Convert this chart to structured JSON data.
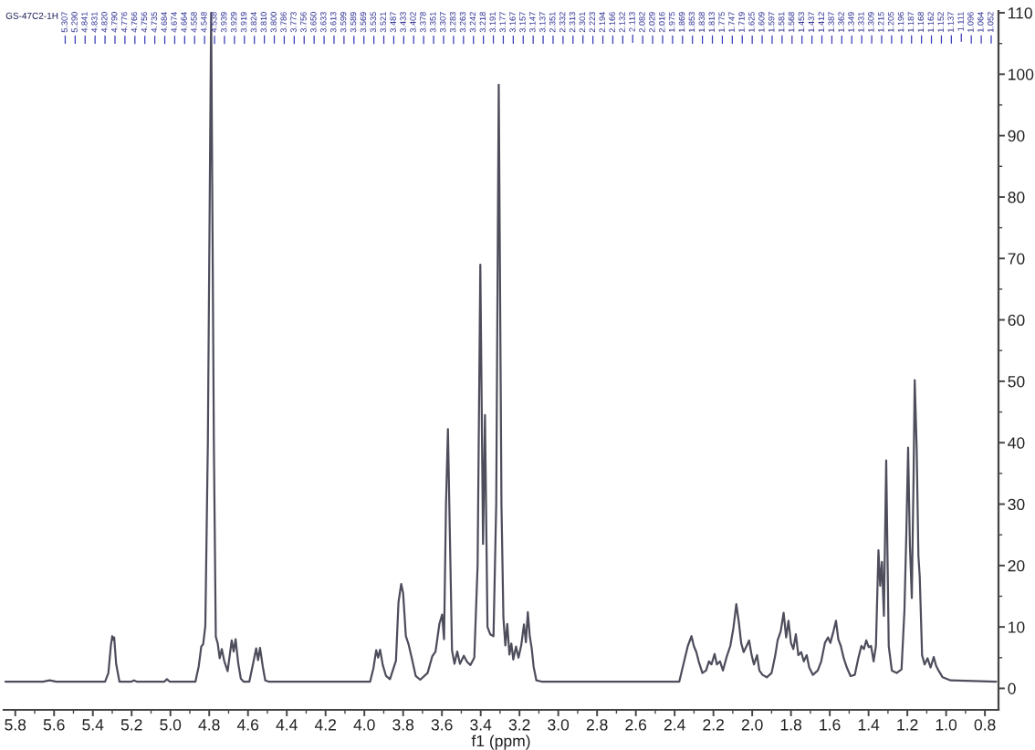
{
  "chart_data": {
    "type": "line",
    "title": "GS-47C2-1H",
    "xlabel": "f1 (ppm)",
    "color": "#4d4d5c",
    "xlim": [
      5.86,
      0.73
    ],
    "ylim": [
      -3.5,
      110.3
    ],
    "xticks": [
      5.8,
      5.6,
      5.4,
      5.2,
      {
        "value": 5,
        "label": "5.0"
      },
      4.8,
      4.6,
      4.4,
      4.2,
      {
        "value": 4,
        "label": "4.0"
      },
      3.8,
      3.6,
      3.4,
      3.2,
      {
        "value": 3,
        "label": "3.0"
      },
      2.8,
      2.6,
      2.4,
      2.2,
      {
        "value": 2,
        "label": "2.0"
      },
      1.8,
      1.6,
      1.4,
      1.2,
      {
        "value": 1,
        "label": "1.0"
      },
      0.8
    ],
    "yticks": [
      0,
      10,
      20,
      30,
      40,
      50,
      60,
      70,
      80,
      90,
      100,
      110
    ],
    "x": [
      5.851,
      5.657,
      5.623,
      5.589,
      5.337,
      5.32,
      5.307,
      5.3,
      5.293,
      5.29,
      5.28,
      5.263,
      5.201,
      5.188,
      5.174,
      5.031,
      5.018,
      5.004,
      4.871,
      4.854,
      4.841,
      4.831,
      4.82,
      4.807,
      4.79,
      4.776,
      4.766,
      4.756,
      4.746,
      4.735,
      4.722,
      4.705,
      4.684,
      4.674,
      4.664,
      4.65,
      4.637,
      4.623,
      4.593,
      4.572,
      4.558,
      4.548,
      4.538,
      4.524,
      4.511,
      4.494,
      3.97,
      3.953,
      3.939,
      3.929,
      3.919,
      3.905,
      3.888,
      3.868,
      3.837,
      3.824,
      3.81,
      3.8,
      3.786,
      3.773,
      3.756,
      3.735,
      3.712,
      3.674,
      3.65,
      3.633,
      3.613,
      3.599,
      3.589,
      3.579,
      3.569,
      3.559,
      3.548,
      3.535,
      3.521,
      3.507,
      3.487,
      3.47,
      3.453,
      3.433,
      3.416,
      3.402,
      3.388,
      3.378,
      3.365,
      3.351,
      3.334,
      3.32,
      3.307,
      3.293,
      3.283,
      3.273,
      3.263,
      3.252,
      3.242,
      3.232,
      3.218,
      3.205,
      3.191,
      3.177,
      3.167,
      3.157,
      3.147,
      3.137,
      3.127,
      3.113,
      3.086,
      2.376,
      2.351,
      2.332,
      2.313,
      2.301,
      2.288,
      2.276,
      2.257,
      2.238,
      2.223,
      2.21,
      2.194,
      2.182,
      2.166,
      2.151,
      2.132,
      2.113,
      2.097,
      2.082,
      2.069,
      2.057,
      2.044,
      2.029,
      2.016,
      2.003,
      1.991,
      1.975,
      1.963,
      1.947,
      1.925,
      1.9,
      1.881,
      1.869,
      1.853,
      1.838,
      1.825,
      1.813,
      1.8,
      1.788,
      1.775,
      1.762,
      1.747,
      1.734,
      1.719,
      1.706,
      1.687,
      1.662,
      1.644,
      1.625,
      1.609,
      1.597,
      1.581,
      1.568,
      1.556,
      1.543,
      1.528,
      1.512,
      1.493,
      1.471,
      1.453,
      1.437,
      1.424,
      1.412,
      1.399,
      1.387,
      1.374,
      1.362,
      1.349,
      1.34,
      1.331,
      1.321,
      1.309,
      1.296,
      1.28,
      1.255,
      1.23,
      1.215,
      1.205,
      1.196,
      1.187,
      1.177,
      1.168,
      1.162,
      1.152,
      1.143,
      1.136,
      1.124,
      1.111,
      1.096,
      1.08,
      1.064,
      1.052,
      1.039,
      1.018,
      0.977,
      0.742
    ],
    "values": [
      1.1,
      1.1,
      1.3,
      1.1,
      1.1,
      2.5,
      7.0,
      8.5,
      7.9,
      8.3,
      4.0,
      1.1,
      1.1,
      1.3,
      1.1,
      1.1,
      1.5,
      1.1,
      1.1,
      3.6,
      6.8,
      7.2,
      10.2,
      40,
      110,
      40,
      8.4,
      7.3,
      4.9,
      6.4,
      4.4,
      2.8,
      7.8,
      6.0,
      8.0,
      4.0,
      1.6,
      1.1,
      1.1,
      4.3,
      6.5,
      4.6,
      6.6,
      3.6,
      1.3,
      1.1,
      1.1,
      3.3,
      6.2,
      5.0,
      6.3,
      3.8,
      2.0,
      1.5,
      4.5,
      14.0,
      17.0,
      15.5,
      8.5,
      7.3,
      5.0,
      2.0,
      1.4,
      2.5,
      5.2,
      6.0,
      10.5,
      12.0,
      8.0,
      30,
      42.2,
      25,
      6.2,
      4.0,
      6.0,
      4.0,
      5.3,
      4.3,
      3.8,
      5.0,
      20,
      69.0,
      23.5,
      44.5,
      10.0,
      8.8,
      8.5,
      30,
      98.3,
      30,
      11.5,
      7.0,
      10.5,
      5.5,
      7.3,
      4.7,
      6.8,
      5.0,
      7.0,
      10.4,
      7.5,
      12.4,
      8.5,
      6.5,
      3.5,
      1.3,
      1.1,
      1.1,
      4.4,
      6.9,
      8.5,
      6.9,
      5.9,
      4.4,
      2.5,
      2.9,
      4.4,
      3.9,
      5.6,
      3.9,
      4.4,
      2.9,
      5.1,
      6.9,
      9.8,
      13.7,
      10.8,
      7.4,
      5.9,
      6.9,
      7.8,
      5.4,
      3.9,
      5.4,
      2.9,
      2.2,
      1.8,
      2.5,
      5.4,
      7.8,
      9.3,
      12.3,
      8.3,
      11.0,
      7.4,
      6.4,
      8.8,
      5.4,
      5.9,
      4.4,
      5.4,
      3.4,
      2.2,
      2.9,
      4.4,
      7.4,
      8.3,
      7.4,
      9.3,
      11.0,
      8.0,
      6.9,
      4.9,
      3.4,
      2.0,
      2.2,
      4.9,
      6.9,
      6.4,
      7.8,
      6.7,
      6.9,
      4.4,
      6.9,
      22.5,
      16.7,
      20.6,
      11.8,
      37.1,
      6.9,
      2.9,
      2.5,
      3.1,
      12.7,
      25.5,
      39.2,
      23.5,
      14.7,
      34.3,
      50.2,
      39.2,
      21.6,
      18.1,
      5.4,
      3.9,
      4.9,
      3.4,
      5.1,
      3.7,
      2.9,
      1.8,
      1.3,
      1.1
    ],
    "annotations": [
      "5.307",
      "5.290",
      "4.841",
      "4.831",
      "4.820",
      "4.790",
      "4.776",
      "4.766",
      "4.756",
      "4.735",
      "4.684",
      "4.674",
      "4.664",
      "4.558",
      "4.548",
      "4.538",
      "3.939",
      "3.929",
      "3.919",
      "3.824",
      "3.810",
      "3.800",
      "3.786",
      "3.773",
      "3.756",
      "3.650",
      "3.633",
      "3.613",
      "3.599",
      "3.589",
      "3.569",
      "3.535",
      "3.521",
      "3.487",
      "3.433",
      "3.402",
      "3.378",
      "3.351",
      "3.307",
      "3.283",
      "3.263",
      "3.242",
      "3.218",
      "3.191",
      "3.177",
      "3.167",
      "3.157",
      "3.147",
      "3.137",
      "2.351",
      "2.332",
      "2.313",
      "2.301",
      "2.223",
      "2.194",
      "2.166",
      "2.132",
      "2.113",
      "2.082",
      "2.029",
      "2.016",
      "1.975",
      "1.869",
      "1.853",
      "1.838",
      "1.813",
      "1.775",
      "1.747",
      "1.719",
      "1.625",
      "1.609",
      "1.597",
      "1.581",
      "1.568",
      "1.453",
      "1.437",
      "1.412",
      "1.387",
      "1.362",
      "1.349",
      "1.331",
      "1.309",
      "1.215",
      "1.205",
      "1.196",
      "1.187",
      "1.168",
      "1.162",
      "1.152",
      "1.137",
      "1.111",
      "1.096",
      "1.064",
      "1.052"
    ]
  }
}
